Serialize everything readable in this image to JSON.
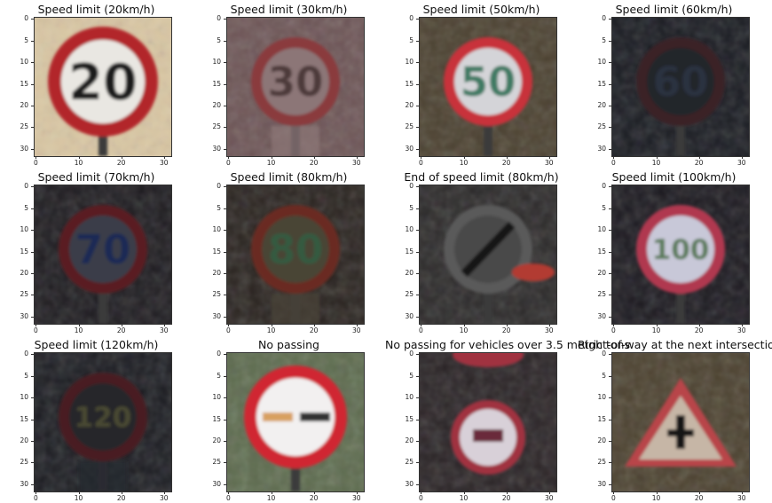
{
  "figure": {
    "y_ticks": [
      "0",
      "5",
      "10",
      "15",
      "20",
      "25",
      "30"
    ],
    "x_ticks": [
      "0",
      "10",
      "20",
      "30"
    ],
    "panels": [
      {
        "title": "Speed limit (20km/h)",
        "scene": "sign-20",
        "bg": "#d9c6a2",
        "ring": "#b2272b",
        "inner": "#e9e7e2",
        "text": "20",
        "text_color": "#1c1c1c"
      },
      {
        "title": "Speed limit (30km/h)",
        "scene": "sign-30",
        "bg": "#6d5556",
        "ring": "#8a3a3c",
        "inner": "#8c7677",
        "text": "30",
        "text_color": "#4d3a3b"
      },
      {
        "title": "Speed limit (50km/h)",
        "scene": "sign-50",
        "bg": "#4b4130",
        "ring": "#c8303a",
        "inner": "#d4d4d8",
        "text": "50",
        "text_color": "#3f7a64"
      },
      {
        "title": "Speed limit (60km/h)",
        "scene": "sign-60",
        "bg": "#1a1c22",
        "ring": "#3a2025",
        "inner": "#23252c",
        "text": "60",
        "text_color": "#2c3040"
      },
      {
        "title": "Speed limit (70km/h)",
        "scene": "sign-70",
        "bg": "#1e1c20",
        "ring": "#5a1e22",
        "inner": "#3a3e4a",
        "text": "70",
        "text_color": "#1f2a55"
      },
      {
        "title": "Speed limit (80km/h)",
        "scene": "sign-80",
        "bg": "#2a2420",
        "ring": "#6a2a22",
        "inner": "#4a4436",
        "text": "80",
        "text_color": "#355a40"
      },
      {
        "title": "End of speed limit (80km/h)",
        "scene": "end-80",
        "bg": "#2c2a2a",
        "ring": "#5a5a5a",
        "inner": "#4a4848",
        "text": "",
        "text_color": "#1a1a1a"
      },
      {
        "title": "Speed limit (100km/h)",
        "scene": "sign-100",
        "bg": "#1c1a20",
        "ring": "#b03850",
        "inner": "#c8c8d8",
        "text": "100",
        "text_color": "#5a7a5a"
      },
      {
        "title": "Speed limit (120km/h)",
        "scene": "sign-120",
        "bg": "#1c1d22",
        "ring": "#4a1e22",
        "inner": "#25262c",
        "text": "120",
        "text_color": "#4a4a30"
      },
      {
        "title": "No passing",
        "scene": "no-passing",
        "bg": "#5d6b4e",
        "ring": "#d02830",
        "inner": "#f2f0f0",
        "text": "",
        "text_color": "#c02020"
      },
      {
        "title": "No passing for vehicles over 3.5 metric tons",
        "scene": "no-passing-trucks",
        "bg": "#2a2426",
        "ring": "#a03040",
        "inner": "#d8d0d8",
        "text": "",
        "text_color": "#6a2a3a"
      },
      {
        "title": "Right-of-way at the next intersection",
        "scene": "right-of-way",
        "bg": "#4c4230",
        "ring": "#b8454a",
        "inner": "#c6b6a6",
        "text": "",
        "text_color": "#141414"
      }
    ]
  }
}
